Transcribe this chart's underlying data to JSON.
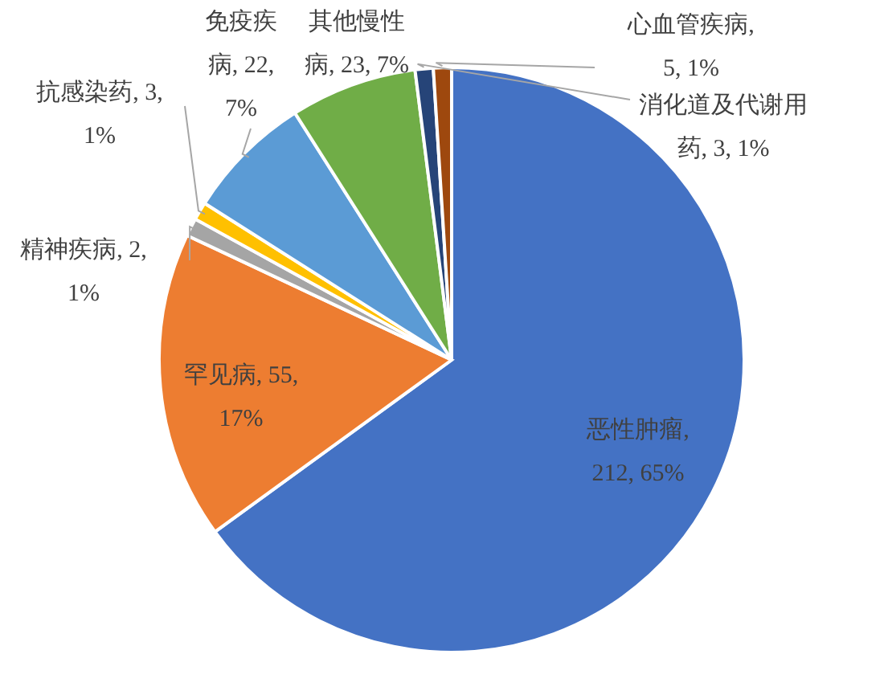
{
  "chart_data": {
    "type": "pie",
    "categories": [
      "恶性肿瘤, 212, 65%",
      "罕见病, 55, 17%",
      "精神疾病, 2, 1%",
      "抗感染药, 3, 1%",
      "免疫疾病, 22, 7%",
      "其他慢性病, 23, 7%",
      "消化道及代谢用药, 3, 1%",
      "心血管疾病, 5, 1%"
    ],
    "values": [
      65,
      17,
      1,
      1,
      7,
      7,
      1,
      1
    ],
    "colors": [
      "#4472c4",
      "#ed7d31",
      "#a5a5a5",
      "#ffc000",
      "#5b9bd5",
      "#70ad47",
      "#264478",
      "#9e480e"
    ]
  }
}
